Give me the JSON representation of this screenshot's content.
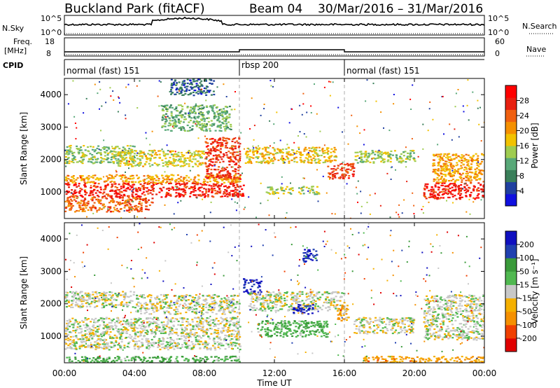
{
  "header": {
    "station": "Buckland Park (fitACF)",
    "beam": "Beam 04",
    "dates": "30/Mar/2016 – 31/Mar/2016"
  },
  "noise_panel": {
    "left_label": "N.Sky",
    "left_ticks": [
      "10^5",
      "10^0"
    ],
    "right_label": "N.Search",
    "right_ticks": [
      "10^5",
      "10^0"
    ]
  },
  "freq_panel": {
    "left_label_1": "Freq.",
    "left_label_2": "[MHz]",
    "left_ticks": [
      "18",
      "8"
    ],
    "right_label": "Nave",
    "right_ticks": [
      "60",
      "0"
    ]
  },
  "cpid_panel": {
    "label": "CPID",
    "segments": [
      {
        "label": "normal (fast) 151",
        "start_h": 0,
        "end_h": 10
      },
      {
        "label": "rbsp 200",
        "start_h": 10,
        "end_h": 16
      },
      {
        "label": "normal (fast) 151",
        "start_h": 16,
        "end_h": 24
      }
    ]
  },
  "xaxis": {
    "label": "Time UT",
    "ticks": [
      "00:00",
      "04:00",
      "08:00",
      "12:00",
      "16:00",
      "20:00",
      "00:00"
    ],
    "tick_hours": [
      0,
      4,
      8,
      12,
      16,
      20,
      24
    ]
  },
  "power_panel": {
    "ylabel": "Slant Range [km]",
    "yticks": [
      "1000",
      "2000",
      "3000",
      "4000"
    ],
    "ytick_values": [
      1000,
      2000,
      3000,
      4000
    ],
    "colorbar_label": "Power [dB]",
    "colorbar_ticks": [
      "4",
      "8",
      "12",
      "16",
      "20",
      "24",
      "28"
    ]
  },
  "velocity_panel": {
    "ylabel": "Slant Range [km]",
    "yticks": [
      "1000",
      "2000",
      "3000",
      "4000"
    ],
    "ytick_values": [
      1000,
      2000,
      3000,
      4000
    ],
    "colorbar_label": "Velocity [m s⁻¹]",
    "colorbar_ticks": [
      "200",
      "100",
      "50",
      "15",
      "-15",
      "-50",
      "-100",
      "-200"
    ]
  },
  "chart_data": [
    {
      "type": "heatmap",
      "quantity": "Power",
      "units": "dB",
      "xlabel": "Time UT",
      "ylabel": "Slant Range [km]",
      "xlim_hours": [
        0,
        24
      ],
      "ylim_km": [
        180,
        4500
      ],
      "color_range": [
        0,
        32
      ],
      "colormap": [
        "#1010e0",
        "#2040a0",
        "#3a7f5a",
        "#58a878",
        "#9fcc50",
        "#f2c200",
        "#f59000",
        "#f06010",
        "#e82010",
        "#ff0000"
      ],
      "echo_regions": [
        {
          "t0": 0.0,
          "t1": 10.2,
          "r0": 850,
          "r1": 1300,
          "level": 28
        },
        {
          "t0": 0.0,
          "t1": 10.0,
          "r0": 1300,
          "r1": 1550,
          "level": 20
        },
        {
          "t0": 0.0,
          "t1": 5.0,
          "r0": 400,
          "r1": 850,
          "level": 24
        },
        {
          "t0": 0.0,
          "t1": 4.0,
          "r0": 1900,
          "r1": 2450,
          "level": 14
        },
        {
          "t0": 3.0,
          "t1": 8.0,
          "r0": 1800,
          "r1": 2300,
          "level": 16
        },
        {
          "t0": 8.0,
          "t1": 10.0,
          "r0": 1400,
          "r1": 2700,
          "level": 26
        },
        {
          "t0": 10.3,
          "t1": 15.5,
          "r0": 1900,
          "r1": 2400,
          "level": 18
        },
        {
          "t0": 15.0,
          "t1": 16.5,
          "r0": 1400,
          "r1": 1900,
          "level": 26
        },
        {
          "t0": 16.5,
          "t1": 20.0,
          "r0": 1900,
          "r1": 2300,
          "level": 14
        },
        {
          "t0": 20.5,
          "t1": 24.0,
          "r0": 800,
          "r1": 1300,
          "level": 28
        },
        {
          "t0": 21.0,
          "t1": 24.0,
          "r0": 1300,
          "r1": 2200,
          "level": 20
        },
        {
          "t0": 5.5,
          "t1": 9.5,
          "r0": 2900,
          "r1": 3700,
          "level": 12
        },
        {
          "t0": 6.0,
          "t1": 8.5,
          "r0": 4000,
          "r1": 4500,
          "level": 6
        },
        {
          "t0": 11.5,
          "t1": 14.5,
          "r0": 950,
          "r1": 1200,
          "level": 14
        }
      ]
    },
    {
      "type": "heatmap",
      "quantity": "Velocity",
      "units": "m s^-1",
      "xlabel": "Time UT",
      "ylabel": "Slant Range [km]",
      "xlim_hours": [
        0,
        24
      ],
      "ylim_km": [
        180,
        4500
      ],
      "color_range": [
        -200,
        200
      ],
      "colormap": [
        "#e00000",
        "#f04000",
        "#f59000",
        "#f5b000",
        "#c8c8c8",
        "#50b850",
        "#3a9a3a",
        "#2040b0",
        "#1010c0"
      ],
      "echo_regions": [
        {
          "t0": 0.0,
          "t1": 10.0,
          "r0": 600,
          "r1": 1600,
          "level": 0
        },
        {
          "t0": 0.0,
          "t1": 4.0,
          "r0": 1900,
          "r1": 2400,
          "level": 0
        },
        {
          "t0": 4.0,
          "t1": 10.0,
          "r0": 1700,
          "r1": 2300,
          "level": 0
        },
        {
          "t0": 10.2,
          "t1": 11.2,
          "r0": 2300,
          "r1": 2800,
          "level": 180
        },
        {
          "t0": 10.5,
          "t1": 16.0,
          "r0": 1800,
          "r1": 2400,
          "level": 0
        },
        {
          "t0": 13.0,
          "t1": 14.2,
          "r0": 1700,
          "r1": 2000,
          "level": 160
        },
        {
          "t0": 11.0,
          "t1": 15.0,
          "r0": 1000,
          "r1": 1500,
          "level": 60
        },
        {
          "t0": 15.5,
          "t1": 16.2,
          "r0": 1500,
          "r1": 2000,
          "level": -60
        },
        {
          "t0": 16.5,
          "t1": 20.0,
          "r0": 1100,
          "r1": 1600,
          "level": 0
        },
        {
          "t0": 20.5,
          "t1": 24.0,
          "r0": 900,
          "r1": 2300,
          "level": 0
        },
        {
          "t0": 17.0,
          "t1": 24.0,
          "r0": 200,
          "r1": 400,
          "level": -70
        },
        {
          "t0": 0.0,
          "t1": 10.0,
          "r0": 200,
          "r1": 400,
          "level": 60
        },
        {
          "t0": 13.5,
          "t1": 14.4,
          "r0": 3300,
          "r1": 3700,
          "level": 150
        }
      ]
    }
  ]
}
